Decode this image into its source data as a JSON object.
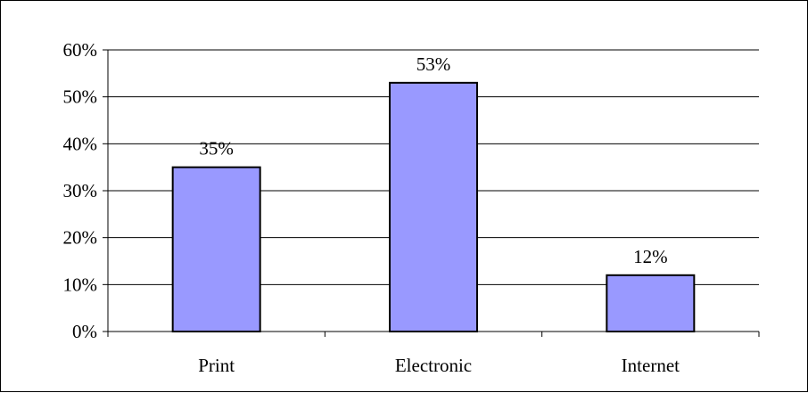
{
  "chart_data": {
    "type": "bar",
    "title": "",
    "xlabel": "",
    "ylabel": "",
    "categories": [
      "Print",
      "Electronic",
      "Internet"
    ],
    "values": [
      35,
      53,
      12
    ],
    "data_labels": [
      "35%",
      "53%",
      "12%"
    ],
    "ylim": [
      0,
      60
    ],
    "y_ticks": [
      0,
      10,
      20,
      30,
      40,
      50,
      60
    ],
    "y_tick_labels": [
      "0%",
      "10%",
      "20%",
      "30%",
      "40%",
      "50%",
      "60%"
    ],
    "grid": true,
    "legend": "none",
    "colors": {
      "bar_fill": "#9999ff",
      "bar_stroke": "#000000",
      "gridline": "#000000",
      "axis": "#000000"
    }
  }
}
